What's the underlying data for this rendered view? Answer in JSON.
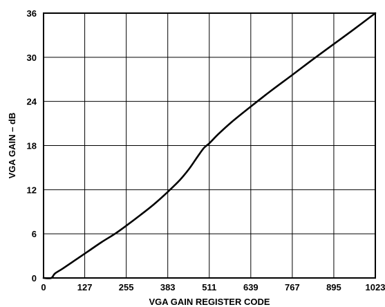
{
  "chart_data": {
    "type": "line",
    "title": "",
    "xlabel": "VGA GAIN REGISTER CODE",
    "ylabel": "VGA GAIN – dB",
    "xlim": [
      0,
      1023
    ],
    "ylim": [
      0,
      36
    ],
    "x_ticks": [
      0,
      127,
      255,
      383,
      511,
      639,
      767,
      895,
      1023
    ],
    "y_ticks": [
      0,
      6,
      12,
      18,
      24,
      30,
      36
    ],
    "grid": true,
    "legend": "none",
    "series": [
      {
        "color": "#000000",
        "x": [
          0,
          24,
          35,
          60,
          100,
          140,
          180,
          220,
          255,
          300,
          340,
          383,
          420,
          450,
          475,
          495,
          511,
          540,
          580,
          639,
          700,
          767,
          830,
          895,
          960,
          1023
        ],
        "y": [
          0,
          0.0,
          0.6,
          1.3,
          2.5,
          3.7,
          4.9,
          6.0,
          7.1,
          8.6,
          10.0,
          11.7,
          13.3,
          14.9,
          16.5,
          17.7,
          18.3,
          19.6,
          21.2,
          23.3,
          25.4,
          27.6,
          29.7,
          31.8,
          33.9,
          36.0
        ]
      }
    ]
  }
}
